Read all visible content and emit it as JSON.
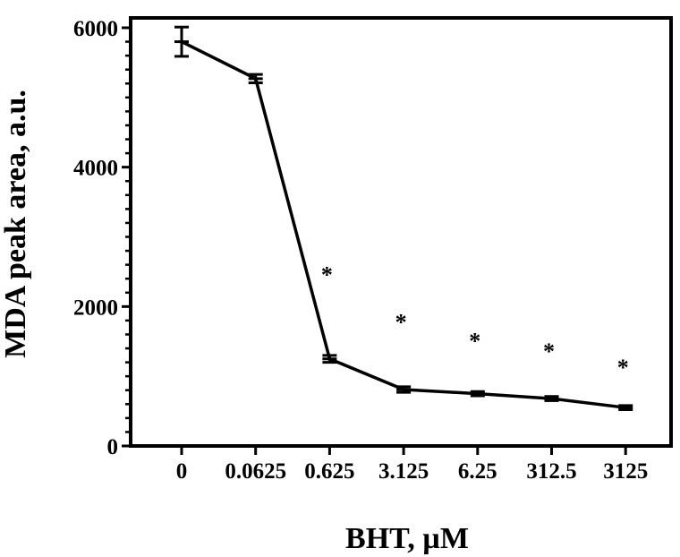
{
  "chart_data": {
    "type": "line",
    "title": "",
    "xlabel": "BHT, µM",
    "ylabel": "MDA peak area, a.u.",
    "categories": [
      "0",
      "0.0625",
      "0.625",
      "3.125",
      "6.25",
      "312.5",
      "3125"
    ],
    "ylim": [
      0,
      6000
    ],
    "yticks": [
      "0",
      "2000",
      "4000",
      "6000"
    ],
    "grid": false,
    "series": [
      {
        "name": "",
        "values": [
          5800,
          5270,
          1250,
          810,
          750,
          680,
          550
        ],
        "errors": [
          210,
          60,
          50,
          40,
          30,
          30,
          30
        ],
        "color": "#000000"
      }
    ],
    "significance": [
      {
        "category": "0.625",
        "symbol": "*",
        "y": 2500
      },
      {
        "category": "3.125",
        "symbol": "*",
        "y": 1820
      },
      {
        "category": "6.25",
        "symbol": "*",
        "y": 1550
      },
      {
        "category": "312.5",
        "symbol": "*",
        "y": 1400
      },
      {
        "category": "3125",
        "symbol": "*",
        "y": 1170
      }
    ]
  }
}
